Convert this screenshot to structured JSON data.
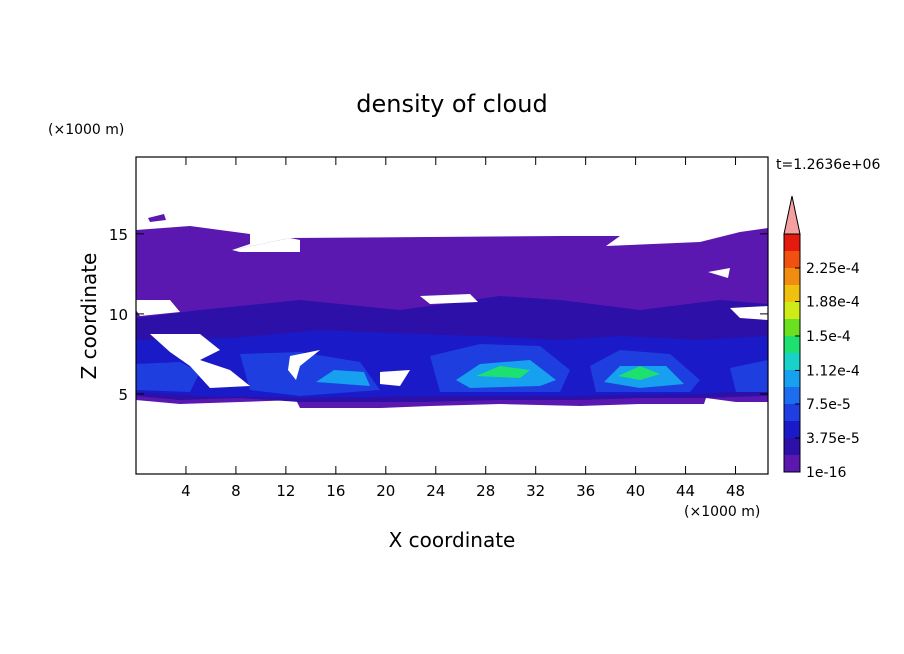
{
  "chart_data": {
    "type": "contour",
    "title": "density of cloud",
    "time_label": "t=1.2636e+06",
    "x_label": "X coordinate",
    "y_label": "Z coordinate",
    "x_unit": "(×1000 m)",
    "y_unit": "(×1000 m)",
    "xlim": [
      0,
      50.6
    ],
    "ylim": [
      0,
      19.8
    ],
    "xticks": [
      4,
      8,
      12,
      16,
      20,
      24,
      28,
      32,
      36,
      40,
      44,
      48
    ],
    "yticks": [
      5,
      10,
      15
    ],
    "colorbar": {
      "levels": [
        1e-16,
        1.875e-05,
        3.75e-05,
        5.625e-05,
        7.5e-05,
        9.375e-05,
        0.0001125,
        0.00013125,
        0.00015,
        0.00016875,
        0.0001875,
        0.00020625,
        0.000225,
        0.00024375
      ],
      "colors": [
        "#5a18b0",
        "#2c10a8",
        "#1a1ac8",
        "#1e3ee0",
        "#1e6cf0",
        "#18a0f0",
        "#18d2c8",
        "#1ee070",
        "#6ae020",
        "#d0ec18",
        "#f0c010",
        "#f08c10",
        "#f05010",
        "#e41a10"
      ],
      "overflow_color": "#f4a0a0",
      "ticks": [
        1e-16,
        {
          "value": 3.75e-05,
          "label": "3.75e-5"
        },
        {
          "value": 7.5e-05,
          "label": "7.5e-5"
        },
        {
          "value": 0.000112,
          "label": "1.12e-4"
        },
        {
          "value": 0.00015,
          "label": "1.5e-4"
        },
        {
          "value": 0.000188,
          "label": "1.88e-4"
        },
        {
          "value": 0.000225,
          "label": "2.25e-4"
        }
      ]
    }
  }
}
